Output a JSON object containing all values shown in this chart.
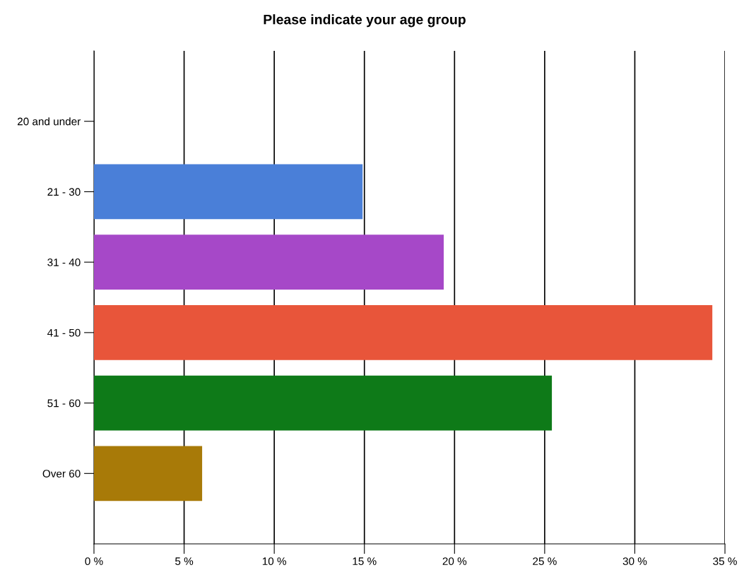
{
  "chart_data": {
    "type": "bar",
    "orientation": "horizontal",
    "title": "Please indicate your age group",
    "categories": [
      "20 and under",
      "21 - 30",
      "31 - 40",
      "41 - 50",
      "51 - 60",
      "Over 60"
    ],
    "values": [
      0,
      14.9,
      19.4,
      34.3,
      25.4,
      6.0
    ],
    "colors": [
      "#4a7fd8",
      "#4a7fd8",
      "#a648c8",
      "#e8553a",
      "#0e7a18",
      "#a87a08"
    ],
    "xlim": [
      0,
      35
    ],
    "xticks": [
      {
        "value": 0,
        "label": "0 %"
      },
      {
        "value": 5,
        "label": "5 %"
      },
      {
        "value": 10,
        "label": "10 %"
      },
      {
        "value": 15,
        "label": "15 %"
      },
      {
        "value": 20,
        "label": "20 %"
      },
      {
        "value": 25,
        "label": "25 %"
      },
      {
        "value": 30,
        "label": "30 %"
      },
      {
        "value": 35,
        "label": "35 %"
      }
    ],
    "grid": "x",
    "legend": false
  }
}
